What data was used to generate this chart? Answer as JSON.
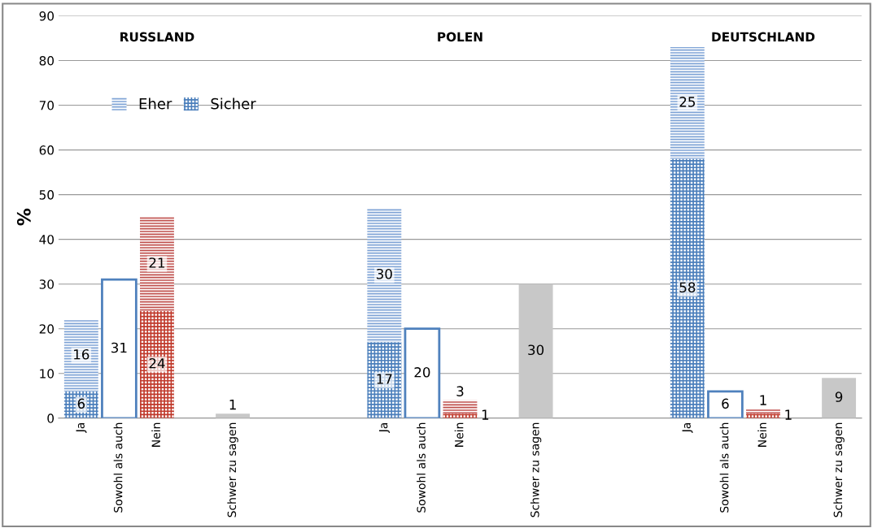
{
  "chart_data": {
    "type": "bar",
    "stacked": true,
    "ylabel": "%",
    "categories": [
      "Ja",
      "Sowohl als auch",
      "Nein",
      null,
      "Schwer zu sagen",
      null,
      null,
      null,
      "Ja",
      "Sowohl als auch",
      "Nein",
      null,
      "Schwer zu sagen",
      null,
      null,
      null,
      "Ja",
      "Sowohl als auch",
      "Nein",
      null,
      "Schwer zu sagen"
    ],
    "series": [
      {
        "name": "Sicher",
        "values": [
          6,
          null,
          24,
          null,
          null,
          null,
          null,
          null,
          17,
          null,
          1,
          null,
          null,
          null,
          null,
          null,
          58,
          null,
          1,
          null,
          null
        ],
        "colors": [
          "#4a7ebb",
          null,
          "#c0392b",
          null,
          null,
          null,
          null,
          null,
          "#4a7ebb",
          null,
          "#c0392b",
          null,
          null,
          null,
          null,
          null,
          "#4a7ebb",
          null,
          "#c0392b",
          null,
          null
        ]
      },
      {
        "name": "Eher",
        "values": [
          16,
          null,
          21,
          null,
          null,
          null,
          null,
          null,
          30,
          null,
          3,
          null,
          null,
          null,
          null,
          null,
          25,
          null,
          1,
          null,
          null
        ],
        "colors": [
          "#7fa4d6",
          null,
          "#c0504d",
          null,
          null,
          null,
          null,
          null,
          "#7fa4d6",
          null,
          "#c0504d",
          null,
          null,
          null,
          null,
          null,
          "#7fa4d6",
          null,
          "#c0504d",
          null,
          null
        ]
      },
      {
        "color": "#4f81bd",
        "values": [
          null,
          31,
          null,
          null,
          null,
          null,
          null,
          null,
          null,
          20,
          null,
          null,
          null,
          null,
          null,
          null,
          null,
          6,
          null,
          null,
          null
        ]
      },
      {
        "color": "#c8c8c8",
        "values": [
          null,
          null,
          null,
          null,
          1,
          null,
          null,
          null,
          null,
          null,
          null,
          null,
          30,
          null,
          null,
          null,
          null,
          null,
          null,
          null,
          9
        ]
      }
    ],
    "annotations": [
      "RUSSLAND",
      "POLEN",
      "DEUTSCHLAND"
    ],
    "ylim": [
      0,
      90
    ],
    "yticks": [
      0,
      10,
      20,
      30,
      40,
      50,
      60,
      70,
      80,
      90
    ],
    "grid": "y",
    "legend": "top left",
    "data_labels": true
  }
}
